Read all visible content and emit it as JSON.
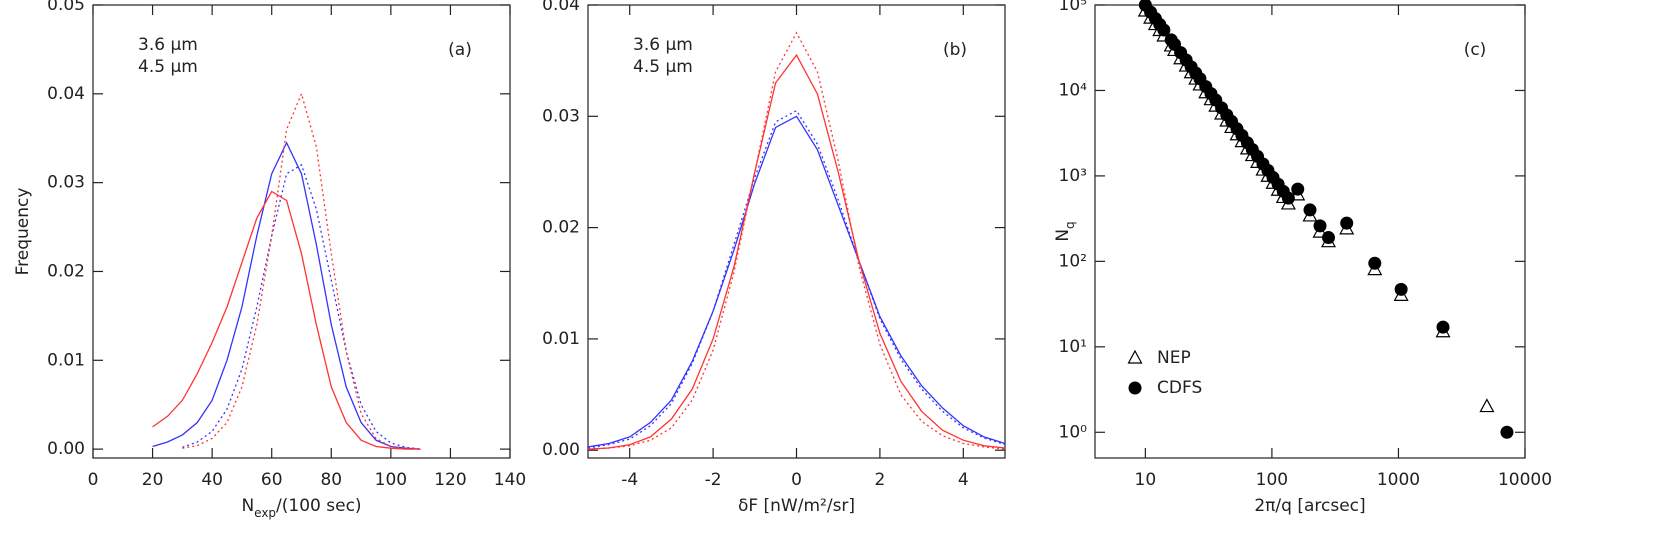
{
  "chart_data": [
    {
      "type": "line",
      "annotation": "(a)",
      "xlabel": [
        "N",
        "exp",
        "/(100 sec)"
      ],
      "ylabel": "Frequency",
      "xlim": [
        0,
        140
      ],
      "ylim": [
        -0.001,
        0.05
      ],
      "xticks": [
        0,
        20,
        40,
        60,
        80,
        100,
        120,
        140
      ],
      "yticks": [
        {
          "value": 0,
          "label": "0.00"
        },
        {
          "value": 0.01,
          "label": "0.01"
        },
        {
          "value": 0.02,
          "label": "0.02"
        },
        {
          "value": 0.03,
          "label": "0.03"
        },
        {
          "value": 0.04,
          "label": "0.04"
        },
        {
          "value": 0.05,
          "label": "0.05"
        }
      ],
      "legend": [
        {
          "label": "3.6 μm",
          "color": "#3333ff"
        },
        {
          "label": "4.5 μm",
          "color": "#ff3333"
        }
      ],
      "x": [
        20,
        25,
        30,
        35,
        40,
        45,
        50,
        55,
        60,
        65,
        70,
        75,
        80,
        85,
        90,
        95,
        100,
        105,
        110
      ],
      "series": [
        {
          "color": "#3333ff",
          "dotted": false,
          "values": [
            0.0003,
            0.0008,
            0.0016,
            0.003,
            0.0055,
            0.01,
            0.016,
            0.024,
            0.031,
            0.0345,
            0.031,
            0.023,
            0.014,
            0.007,
            0.003,
            0.001,
            0.0003,
            0.0001,
            0
          ]
        },
        {
          "color": "#3333ff",
          "dotted": true,
          "values": [
            null,
            null,
            0.0002,
            0.0008,
            0.002,
            0.0045,
            0.009,
            0.016,
            0.024,
            0.031,
            0.032,
            0.027,
            0.019,
            0.011,
            0.005,
            0.002,
            0.0007,
            0.0002,
            0
          ]
        },
        {
          "color": "#ff3333",
          "dotted": false,
          "values": [
            0.0025,
            0.0037,
            0.0055,
            0.0085,
            0.012,
            0.016,
            0.021,
            0.026,
            0.029,
            0.028,
            0.022,
            0.014,
            0.007,
            0.003,
            0.001,
            0.0003,
            0.0001,
            0,
            0
          ]
        },
        {
          "color": "#ff3333",
          "dotted": true,
          "values": [
            null,
            null,
            0.0001,
            0.0004,
            0.0012,
            0.003,
            0.007,
            0.014,
            0.024,
            0.036,
            0.04,
            0.034,
            0.022,
            0.011,
            0.004,
            0.0012,
            0.0003,
            0.0001,
            0
          ]
        }
      ]
    },
    {
      "type": "line",
      "annotation": "(b)",
      "xlabel": "δF   [nW/m²/sr]",
      "xlim": [
        -5,
        5
      ],
      "ylim": [
        -0.0007,
        0.04
      ],
      "xticks": [
        -4,
        -2,
        0,
        2,
        4
      ],
      "yticks": [
        {
          "value": 0,
          "label": "0.00"
        },
        {
          "value": 0.01,
          "label": "0.01"
        },
        {
          "value": 0.02,
          "label": "0.02"
        },
        {
          "value": 0.03,
          "label": "0.03"
        },
        {
          "value": 0.04,
          "label": "0.04"
        }
      ],
      "legend": [
        {
          "label": "3.6 μm",
          "color": "#3333ff"
        },
        {
          "label": "4.5 μm",
          "color": "#ff3333"
        }
      ],
      "x": [
        -5,
        -4.5,
        -4,
        -3.5,
        -3,
        -2.5,
        -2,
        -1.5,
        -1,
        -0.5,
        0,
        0.5,
        1,
        1.5,
        2,
        2.5,
        3,
        3.5,
        4,
        4.5,
        5
      ],
      "series": [
        {
          "color": "#3333ff",
          "dotted": false,
          "values": [
            0.0003,
            0.0006,
            0.0012,
            0.0025,
            0.0045,
            0.008,
            0.0125,
            0.018,
            0.024,
            0.029,
            0.03,
            0.027,
            0.022,
            0.017,
            0.012,
            0.0085,
            0.0058,
            0.0038,
            0.0022,
            0.0012,
            0.0006
          ]
        },
        {
          "color": "#3333ff",
          "dotted": true,
          "values": [
            0.0002,
            0.0005,
            0.001,
            0.0022,
            0.0042,
            0.0078,
            0.0125,
            0.0185,
            0.0245,
            0.0295,
            0.0305,
            0.0275,
            0.0225,
            0.017,
            0.0118,
            0.0082,
            0.0055,
            0.0035,
            0.002,
            0.0011,
            0.0005
          ]
        },
        {
          "color": "#ff3333",
          "dotted": false,
          "values": [
            0.0001,
            0.0002,
            0.0005,
            0.0012,
            0.0028,
            0.0055,
            0.01,
            0.0165,
            0.025,
            0.033,
            0.0355,
            0.032,
            0.025,
            0.017,
            0.0105,
            0.0062,
            0.0035,
            0.0018,
            0.0009,
            0.0004,
            0.0002
          ]
        },
        {
          "color": "#ff3333",
          "dotted": true,
          "values": [
            0.0001,
            0.0002,
            0.0004,
            0.0009,
            0.002,
            0.0045,
            0.009,
            0.016,
            0.025,
            0.034,
            0.0375,
            0.034,
            0.026,
            0.0165,
            0.0095,
            0.005,
            0.0026,
            0.0013,
            0.0006,
            0.0003,
            0.0001
          ]
        }
      ]
    },
    {
      "type": "scatter",
      "annotation": "(c)",
      "xlabel": "2π/q   [arcsec]",
      "ylabel": [
        "N",
        "q"
      ],
      "xlog": true,
      "ylog": true,
      "xlim": [
        4,
        10000
      ],
      "ylim": [
        0.5,
        100000
      ],
      "xticks": [
        10,
        100,
        1000,
        10000
      ],
      "yticks": [
        {
          "value": 1,
          "label": "10⁰"
        },
        {
          "value": 10,
          "label": "10¹"
        },
        {
          "value": 100,
          "label": "10²"
        },
        {
          "value": 1000,
          "label": "10³"
        },
        {
          "value": 10000,
          "label": "10⁴"
        },
        {
          "value": 100000,
          "label": "10⁵"
        }
      ],
      "legend_position": "lower left",
      "series": [
        {
          "name": "NEP",
          "marker": "triangle",
          "color": "#000000",
          "x": [
            10,
            11,
            12,
            13,
            14,
            16,
            17,
            19,
            21,
            23,
            25,
            27,
            30,
            33,
            36,
            40,
            44,
            48,
            53,
            58,
            64,
            70,
            77,
            85,
            93,
            102,
            112,
            123,
            135,
            160,
            200,
            240,
            280,
            390,
            650,
            1050,
            2250,
            5000
          ],
          "values": [
            85000,
            70200,
            59000,
            50300,
            43400,
            33200,
            29400,
            23500,
            19300,
            16100,
            13600,
            11600,
            9400,
            7800,
            6560,
            5300,
            4390,
            3690,
            3030,
            2520,
            2070,
            1730,
            1440,
            1170,
            990,
            820,
            680,
            560,
            470,
            600,
            340,
            220,
            170,
            240,
            80,
            40,
            15,
            2
          ]
        },
        {
          "name": "CDFS",
          "marker": "circle",
          "color": "#000000",
          "x": [
            10,
            11,
            12,
            13,
            14,
            16,
            17,
            19,
            21,
            23,
            25,
            27,
            30,
            33,
            36,
            40,
            44,
            48,
            53,
            58,
            64,
            70,
            77,
            85,
            93,
            102,
            112,
            123,
            135,
            160,
            200,
            240,
            280,
            390,
            650,
            1050,
            2250,
            7200
          ],
          "values": [
            100000,
            82600,
            69400,
            59200,
            51000,
            39100,
            34600,
            27700,
            22700,
            18900,
            16000,
            13700,
            11100,
            9180,
            7720,
            6250,
            5170,
            4340,
            3560,
            2970,
            2440,
            2040,
            1690,
            1380,
            1160,
            960,
            800,
            660,
            550,
            700,
            400,
            260,
            190,
            280,
            95,
            47,
            17,
            1
          ]
        }
      ]
    }
  ]
}
